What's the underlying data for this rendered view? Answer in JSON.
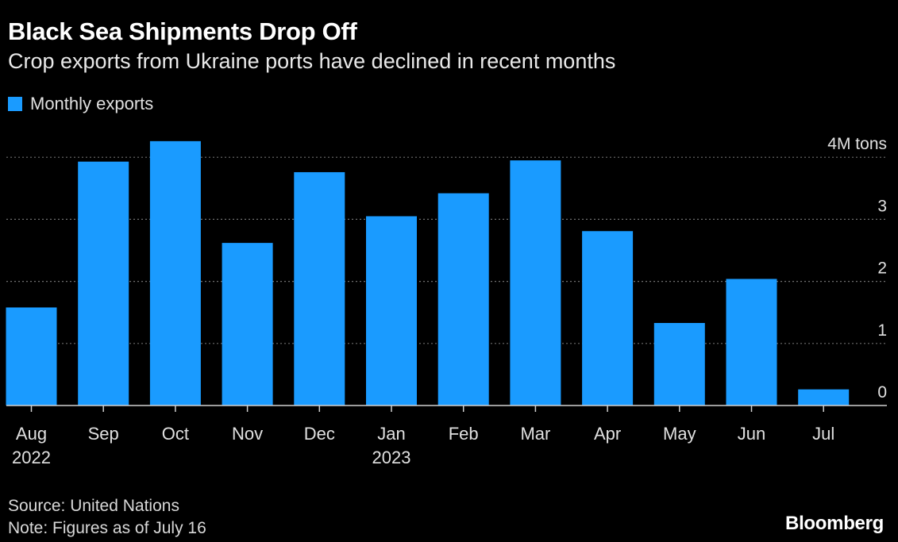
{
  "chart_data": {
    "type": "bar",
    "title": "Black Sea Shipments Drop Off",
    "subtitle": "Crop exports from Ukraine ports have declined in recent months",
    "legend": [
      "Monthly exports"
    ],
    "categories": [
      [
        "Aug",
        "2022"
      ],
      [
        "Sep"
      ],
      [
        "Oct"
      ],
      [
        "Nov"
      ],
      [
        "Dec"
      ],
      [
        "Jan",
        "2023"
      ],
      [
        "Feb"
      ],
      [
        "Mar"
      ],
      [
        "Apr"
      ],
      [
        "May"
      ],
      [
        "Jun"
      ],
      [
        "Jul"
      ]
    ],
    "series": [
      {
        "name": "Monthly exports",
        "values": [
          1.58,
          3.93,
          4.26,
          2.62,
          3.76,
          3.05,
          3.42,
          3.95,
          2.81,
          1.33,
          2.04,
          0.26
        ]
      }
    ],
    "ylim": [
      0,
      4
    ],
    "yticks": [
      {
        "value": 0,
        "label": "0"
      },
      {
        "value": 1,
        "label": "1"
      },
      {
        "value": 2,
        "label": "2"
      },
      {
        "value": 3,
        "label": "3"
      },
      {
        "value": 4,
        "label": "4M tons"
      }
    ],
    "grid": true,
    "legend_position": "top-left",
    "colors": {
      "bar": "#1a9bff",
      "background": "#000000",
      "grid": "#6e6e6e",
      "axis": "#cfcfcf"
    }
  },
  "footer": {
    "source": "Source: United Nations",
    "note": "Note: Figures as of July 16",
    "brand": "Bloomberg"
  }
}
